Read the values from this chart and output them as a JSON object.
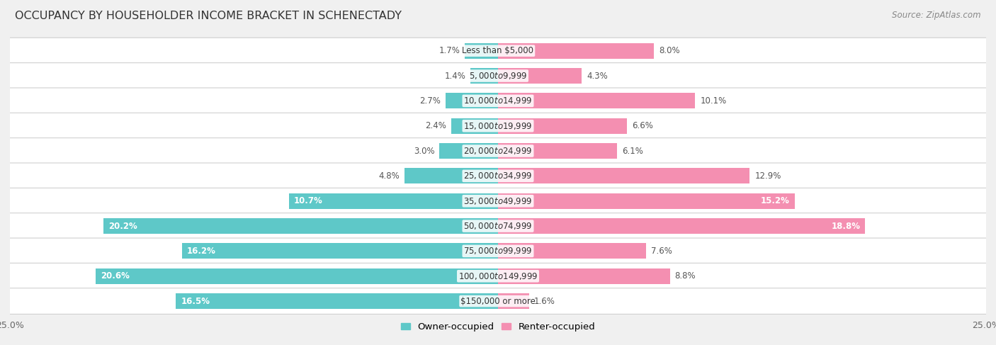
{
  "title": "OCCUPANCY BY HOUSEHOLDER INCOME BRACKET IN SCHENECTADY",
  "source": "Source: ZipAtlas.com",
  "categories": [
    "Less than $5,000",
    "$5,000 to $9,999",
    "$10,000 to $14,999",
    "$15,000 to $19,999",
    "$20,000 to $24,999",
    "$25,000 to $34,999",
    "$35,000 to $49,999",
    "$50,000 to $74,999",
    "$75,000 to $99,999",
    "$100,000 to $149,999",
    "$150,000 or more"
  ],
  "owner_values": [
    1.7,
    1.4,
    2.7,
    2.4,
    3.0,
    4.8,
    10.7,
    20.2,
    16.2,
    20.6,
    16.5
  ],
  "renter_values": [
    8.0,
    4.3,
    10.1,
    6.6,
    6.1,
    12.9,
    15.2,
    18.8,
    7.6,
    8.8,
    1.6
  ],
  "owner_color": "#5ec8c8",
  "renter_color": "#f48fb1",
  "background_color": "#f0f0f0",
  "bar_background": "#ffffff",
  "bar_bg_border": "#d0d0d0",
  "xlim": 25.0,
  "title_fontsize": 11.5,
  "source_fontsize": 8.5,
  "label_fontsize": 8.5,
  "tick_fontsize": 9,
  "legend_fontsize": 9.5,
  "owner_label_white_threshold": 8.0,
  "renter_label_white_threshold": 14.0
}
